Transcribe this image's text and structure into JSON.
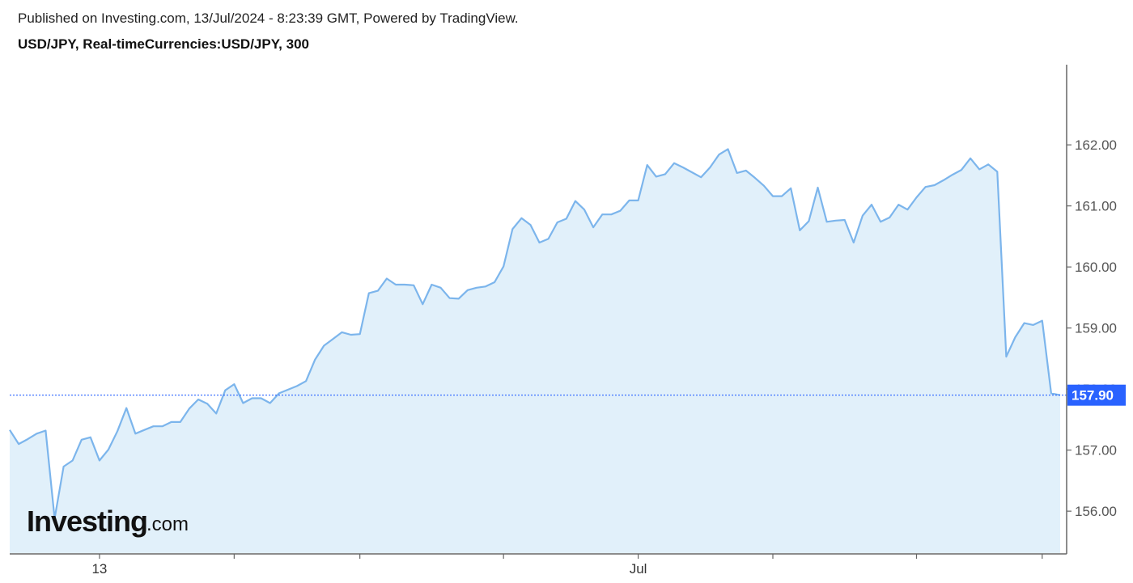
{
  "header": {
    "published": "Published on Investing.com, 13/Jul/2024 - 8:23:39 GMT, Powered by TradingView.",
    "symbol": "USD/JPY, Real-timeCurrencies:USD/JPY, 300"
  },
  "logo": {
    "word": "Investing",
    "suffix": ".com"
  },
  "colors": {
    "line": "#7cb5ec",
    "fill": "#e1f0fa",
    "last_price_bg": "#2962ff",
    "axis": "#666666"
  },
  "chart_data": {
    "type": "area",
    "title": "USD/JPY, Real-timeCurrencies:USD/JPY, 300",
    "xlabel": "",
    "ylabel": "",
    "ylim": [
      155.3,
      163.3
    ],
    "y_ticks": [
      "156.00",
      "157.00",
      "158.00",
      "159.00",
      "160.00",
      "161.00",
      "162.00"
    ],
    "x_ticks": [
      {
        "label": "13",
        "index": 10
      },
      {
        "label": "",
        "index": 25
      },
      {
        "label": "",
        "index": 39
      },
      {
        "label": "",
        "index": 55
      },
      {
        "label": "Jul",
        "index": 70
      },
      {
        "label": "",
        "index": 85
      },
      {
        "label": "",
        "index": 101
      },
      {
        "label": "",
        "index": 115
      }
    ],
    "last_price": "157.90",
    "last_value": 157.9,
    "series": [
      {
        "values": [
          157.33,
          157.1,
          157.18,
          157.27,
          157.32,
          155.88,
          156.73,
          156.83,
          157.17,
          157.21,
          156.83,
          157.01,
          157.31,
          157.69,
          157.27,
          157.33,
          157.39,
          157.39,
          157.46,
          157.46,
          157.68,
          157.83,
          157.76,
          157.6,
          157.98,
          158.08,
          157.77,
          157.85,
          157.85,
          157.77,
          157.93,
          157.99,
          158.05,
          158.13,
          158.48,
          158.71,
          158.82,
          158.93,
          158.89,
          158.9,
          159.57,
          159.61,
          159.81,
          159.71,
          159.71,
          159.7,
          159.39,
          159.71,
          159.66,
          159.49,
          159.48,
          159.62,
          159.66,
          159.68,
          159.75,
          160.01,
          160.62,
          160.8,
          160.69,
          160.4,
          160.46,
          160.73,
          160.79,
          161.08,
          160.94,
          160.65,
          160.86,
          160.86,
          160.92,
          161.09,
          161.09,
          161.67,
          161.48,
          161.52,
          161.7,
          161.63,
          161.55,
          161.47,
          161.63,
          161.84,
          161.93,
          161.54,
          161.58,
          161.46,
          161.33,
          161.16,
          161.16,
          161.29,
          160.6,
          160.75,
          161.3,
          160.74,
          160.76,
          160.77,
          160.4,
          160.84,
          161.02,
          160.74,
          160.81,
          161.02,
          160.94,
          161.14,
          161.31,
          161.34,
          161.42,
          161.51,
          161.59,
          161.78,
          161.6,
          161.68,
          161.56,
          158.53,
          158.85,
          159.08,
          159.05,
          159.12,
          157.93,
          157.9
        ]
      }
    ]
  }
}
